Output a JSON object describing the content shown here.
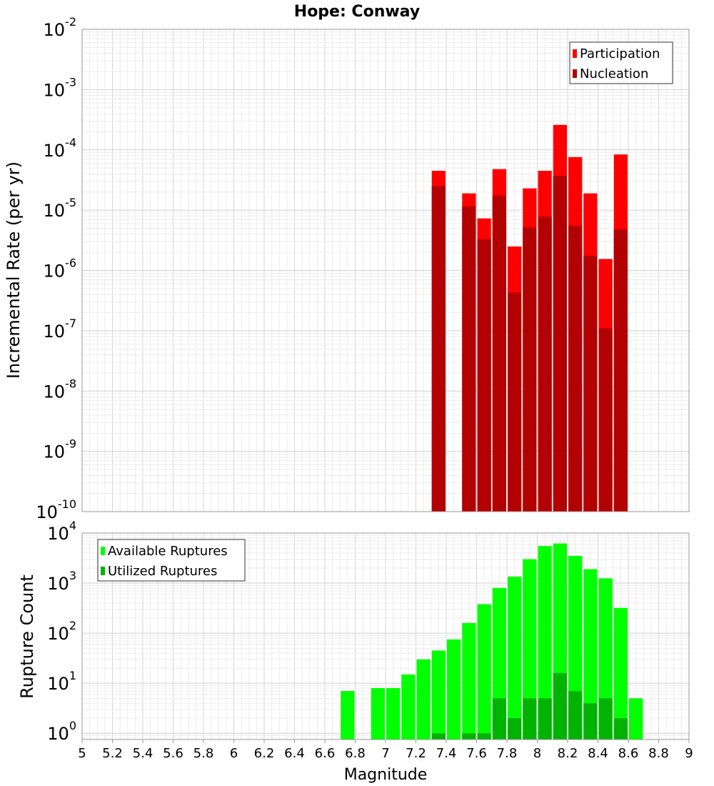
{
  "chart_data": [
    {
      "type": "bar",
      "title": "Hope: Conway",
      "xlabel": "",
      "ylabel": "Incremental Rate (per yr)",
      "y_scale": "log",
      "xlim": [
        5,
        9
      ],
      "ylim": [
        1e-10,
        0.01
      ],
      "y_ticks": [
        {
          "base": "10",
          "exp": "-10"
        },
        {
          "base": "10",
          "exp": "-9"
        },
        {
          "base": "10",
          "exp": "-8"
        },
        {
          "base": "10",
          "exp": "-7"
        },
        {
          "base": "10",
          "exp": "-6"
        },
        {
          "base": "10",
          "exp": "-5"
        },
        {
          "base": "10",
          "exp": "-4"
        },
        {
          "base": "10",
          "exp": "-3"
        },
        {
          "base": "10",
          "exp": "-2"
        }
      ],
      "grid": true,
      "legend_position": "top-right",
      "bar_width": 0.1,
      "series": [
        {
          "name": "Participation",
          "color": "#ff0000",
          "x": [
            7.35,
            7.55,
            7.65,
            7.75,
            7.85,
            7.95,
            8.05,
            8.15,
            8.25,
            8.35,
            8.45,
            8.55
          ],
          "values": [
            4.5e-05,
            1.9e-05,
            7.3e-06,
            4.8e-05,
            2.5e-06,
            2.3e-05,
            4.5e-05,
            0.00026,
            7.6e-05,
            1.9e-05,
            1.55e-06,
            8.4e-05
          ]
        },
        {
          "name": "Nucleation",
          "color": "#b30000",
          "x": [
            7.35,
            7.55,
            7.65,
            7.75,
            7.85,
            7.95,
            8.05,
            8.15,
            8.25,
            8.35,
            8.45,
            8.55
          ],
          "values": [
            2.5e-05,
            1.15e-05,
            3.3e-06,
            1.75e-05,
            4.3e-07,
            5.2e-06,
            7.8e-06,
            3.7e-05,
            5.5e-06,
            1.75e-06,
            1.1e-07,
            4.8e-06
          ]
        }
      ]
    },
    {
      "type": "bar",
      "title": "",
      "xlabel": "Magnitude",
      "ylabel": "Rupture Count",
      "y_scale": "log",
      "xlim": [
        5,
        9
      ],
      "ylim": [
        0.75,
        10000
      ],
      "x_ticks": [
        "5",
        "5.2",
        "5.4",
        "5.6",
        "5.8",
        "6",
        "6.2",
        "6.4",
        "6.6",
        "6.8",
        "7",
        "7.2",
        "7.4",
        "7.6",
        "7.8",
        "8",
        "8.2",
        "8.4",
        "8.6",
        "8.8",
        "9"
      ],
      "y_ticks": [
        {
          "base": "10",
          "exp": "0"
        },
        {
          "base": "10",
          "exp": "1"
        },
        {
          "base": "10",
          "exp": "2"
        },
        {
          "base": "10",
          "exp": "3"
        },
        {
          "base": "10",
          "exp": "4"
        }
      ],
      "grid": true,
      "legend_position": "top-left",
      "bar_width": 0.1,
      "series": [
        {
          "name": "Available Ruptures",
          "color": "#00ff00",
          "x": [
            6.75,
            6.95,
            7.05,
            7.15,
            7.25,
            7.35,
            7.45,
            7.55,
            7.65,
            7.75,
            7.85,
            7.95,
            8.05,
            8.15,
            8.25,
            8.35,
            8.45,
            8.55,
            8.65
          ],
          "values": [
            7,
            8,
            8,
            15,
            30,
            45,
            75,
            160,
            380,
            800,
            1350,
            3000,
            5500,
            6200,
            3500,
            1900,
            1250,
            320,
            5
          ]
        },
        {
          "name": "Utilized Ruptures",
          "color": "#00b300",
          "x": [
            7.35,
            7.55,
            7.65,
            7.75,
            7.85,
            7.95,
            8.05,
            8.15,
            8.25,
            8.35,
            8.45,
            8.55
          ],
          "values": [
            1,
            1,
            1,
            5,
            2,
            5,
            5,
            16,
            7,
            4,
            5,
            2
          ]
        }
      ]
    }
  ]
}
